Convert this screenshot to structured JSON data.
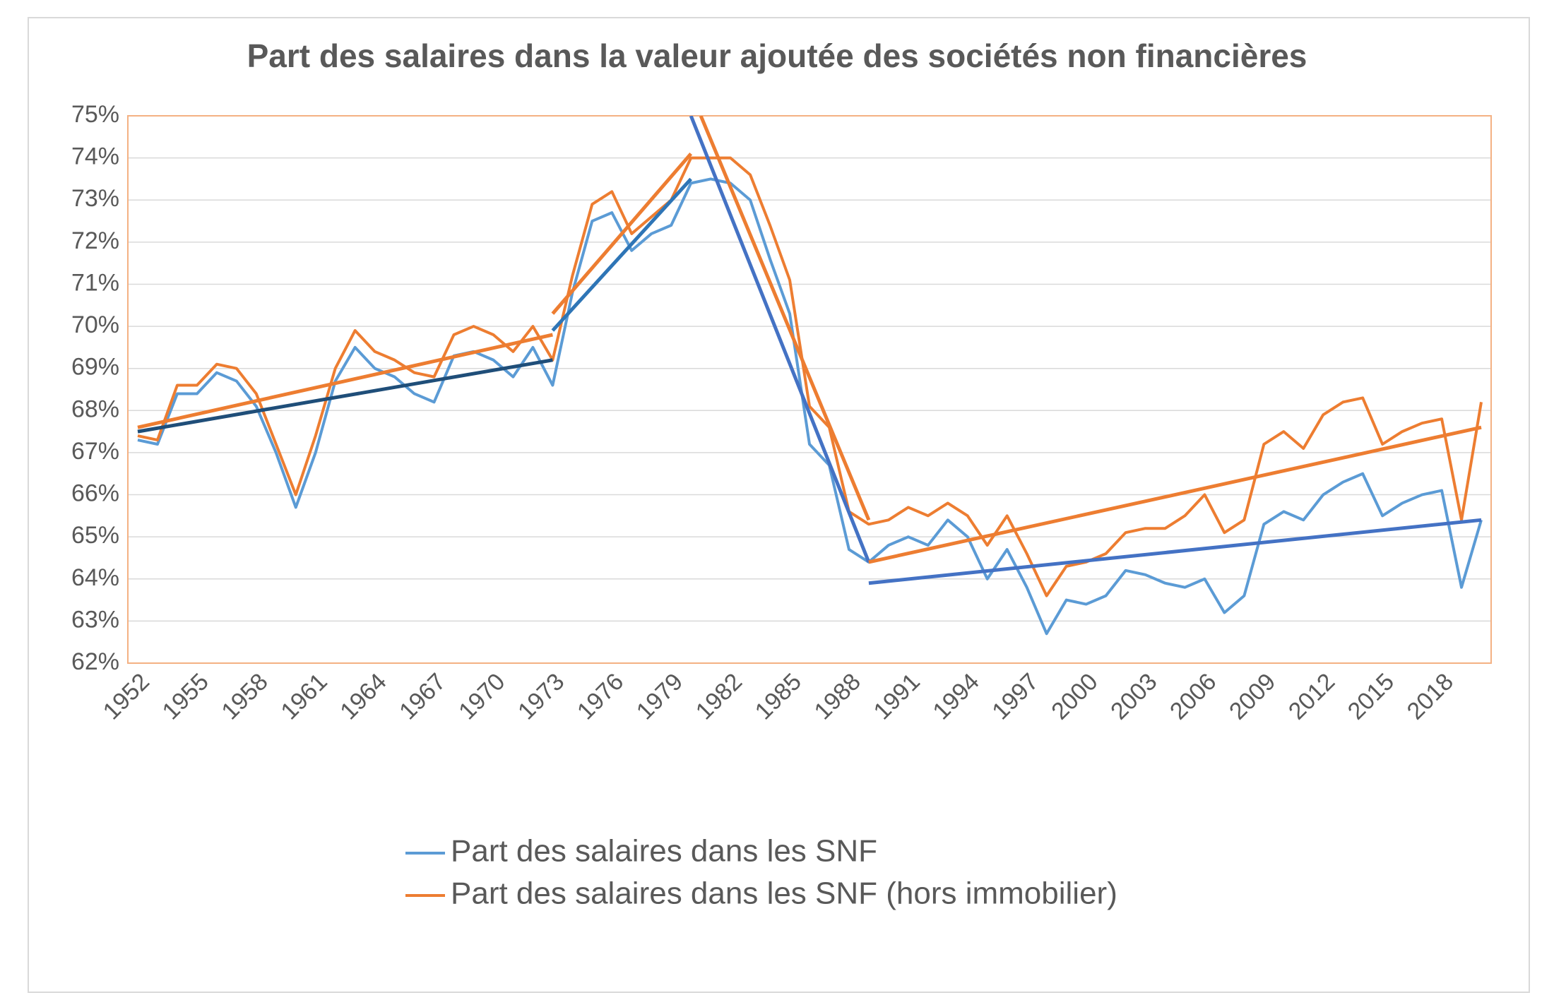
{
  "chart_data": {
    "type": "line",
    "title": "Part des salaires dans la valeur ajoutée des sociétés non financières",
    "x": [
      1952,
      1953,
      1954,
      1955,
      1956,
      1957,
      1958,
      1959,
      1960,
      1961,
      1962,
      1963,
      1964,
      1965,
      1966,
      1967,
      1968,
      1969,
      1970,
      1971,
      1972,
      1973,
      1974,
      1975,
      1976,
      1977,
      1978,
      1979,
      1980,
      1981,
      1982,
      1983,
      1984,
      1985,
      1986,
      1987,
      1988,
      1989,
      1990,
      1991,
      1992,
      1993,
      1994,
      1995,
      1996,
      1997,
      1998,
      1999,
      2000,
      2001,
      2002,
      2003,
      2004,
      2005,
      2006,
      2007,
      2008,
      2009,
      2010,
      2011,
      2012,
      2013,
      2014,
      2015,
      2016,
      2017,
      2018,
      2019,
      2020
    ],
    "xlim": [
      1951.5,
      2020.5
    ],
    "xticks": [
      1952,
      1955,
      1958,
      1961,
      1964,
      1967,
      1970,
      1973,
      1976,
      1979,
      1982,
      1985,
      1988,
      1991,
      1994,
      1997,
      2000,
      2003,
      2006,
      2009,
      2012,
      2015,
      2018
    ],
    "ylim": [
      62,
      75
    ],
    "yticks": [
      {
        "value": 62,
        "label": "62%"
      },
      {
        "value": 63,
        "label": "63%"
      },
      {
        "value": 64,
        "label": "64%"
      },
      {
        "value": 65,
        "label": "65%"
      },
      {
        "value": 66,
        "label": "66%"
      },
      {
        "value": 67,
        "label": "67%"
      },
      {
        "value": 68,
        "label": "68%"
      },
      {
        "value": 69,
        "label": "69%"
      },
      {
        "value": 70,
        "label": "70%"
      },
      {
        "value": 71,
        "label": "71%"
      },
      {
        "value": 72,
        "label": "72%"
      },
      {
        "value": 73,
        "label": "73%"
      },
      {
        "value": 74,
        "label": "74%"
      },
      {
        "value": 75,
        "label": "75%"
      }
    ],
    "grid": true,
    "series": [
      {
        "name": "Part des salaires dans les SNF",
        "color": "#5b9bd5",
        "values": [
          67.3,
          67.2,
          68.4,
          68.4,
          68.9,
          68.7,
          68.1,
          67.0,
          65.7,
          67.0,
          68.7,
          69.5,
          69.0,
          68.8,
          68.4,
          68.2,
          69.3,
          69.4,
          69.2,
          68.8,
          69.5,
          68.6,
          70.8,
          72.5,
          72.7,
          71.8,
          72.2,
          72.4,
          73.4,
          73.5,
          73.4,
          73.0,
          71.6,
          70.3,
          67.2,
          66.7,
          64.7,
          64.4,
          64.8,
          65.0,
          64.8,
          65.4,
          65.0,
          64.0,
          64.7,
          63.8,
          62.7,
          63.5,
          63.4,
          63.6,
          64.2,
          64.1,
          63.9,
          63.8,
          64.0,
          63.2,
          63.6,
          65.3,
          65.6,
          65.4,
          66.0,
          66.3,
          66.5,
          65.5,
          65.8,
          66.0,
          66.1,
          63.8,
          65.4
        ]
      },
      {
        "name": "Part des salaires dans les SNF (hors immobilier)",
        "color": "#ed7d31",
        "values": [
          67.4,
          67.3,
          68.6,
          68.6,
          69.1,
          69.0,
          68.4,
          67.2,
          66.0,
          67.4,
          69.0,
          69.9,
          69.4,
          69.2,
          68.9,
          68.8,
          69.8,
          70.0,
          69.8,
          69.4,
          70.0,
          69.2,
          71.2,
          72.9,
          73.2,
          72.2,
          72.6,
          73.0,
          74.0,
          74.0,
          74.0,
          73.6,
          72.4,
          71.1,
          68.1,
          67.6,
          65.6,
          65.3,
          65.4,
          65.7,
          65.5,
          65.8,
          65.5,
          64.8,
          65.5,
          64.6,
          63.6,
          64.3,
          64.4,
          64.6,
          65.1,
          65.2,
          65.2,
          65.5,
          66.0,
          65.1,
          65.4,
          67.2,
          67.5,
          67.1,
          67.9,
          68.2,
          68.3,
          67.2,
          67.5,
          67.7,
          67.8,
          65.4,
          68.2
        ]
      }
    ],
    "trend_lines": [
      {
        "color": "#1f4e79",
        "x": [
          1952,
          1973
        ],
        "values": [
          67.5,
          69.2
        ]
      },
      {
        "color": "#2e75b6",
        "x": [
          1973,
          1980
        ],
        "values": [
          69.9,
          73.5
        ]
      },
      {
        "color": "#4472c4",
        "x": [
          1980,
          1989
        ],
        "values": [
          75.0,
          64.4
        ]
      },
      {
        "color": "#4472c4",
        "x": [
          1989,
          2020
        ],
        "values": [
          63.9,
          65.4
        ]
      },
      {
        "color": "#ed7d31",
        "x": [
          1952,
          1973
        ],
        "values": [
          67.6,
          69.8
        ]
      },
      {
        "color": "#ed7d31",
        "x": [
          1973,
          1980
        ],
        "values": [
          70.3,
          74.1
        ]
      },
      {
        "color": "#ed7d31",
        "x": [
          1980.5,
          1989
        ],
        "values": [
          75.0,
          65.4
        ]
      },
      {
        "color": "#ed7d31",
        "x": [
          1989,
          2020
        ],
        "values": [
          64.4,
          67.6
        ]
      }
    ]
  }
}
